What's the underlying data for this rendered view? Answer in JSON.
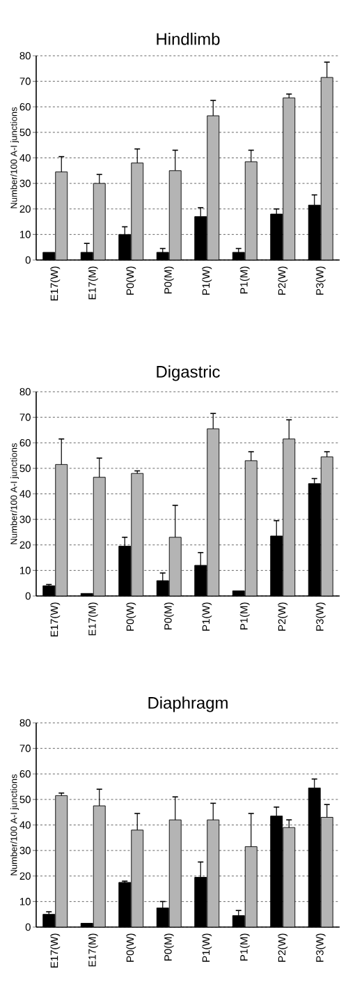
{
  "chart_data": [
    {
      "type": "bar",
      "title": "Hindlimb",
      "ylabel": "Number/100 A-I junctions",
      "categories": [
        "E17(W)",
        "E17(M)",
        "P0(W)",
        "P0(M)",
        "P1(W)",
        "P1(M)",
        "P2(W)",
        "P3(W)"
      ],
      "ylim": [
        0,
        80
      ],
      "yticks": [
        0,
        10,
        20,
        30,
        40,
        50,
        60,
        70,
        80
      ],
      "grid": "y",
      "series": [
        {
          "color": "#000000",
          "values": [
            3,
            3,
            10,
            3,
            17,
            3,
            18,
            21.5
          ],
          "errors": [
            null,
            [
              3,
              6.5
            ],
            [
              10,
              13
            ],
            [
              3,
              4.5
            ],
            [
              17,
              20.5
            ],
            [
              3,
              4.5
            ],
            [
              18,
              20
            ],
            [
              21.5,
              25.5
            ]
          ]
        },
        {
          "color": "#b4b4b4",
          "values": [
            34.5,
            30,
            38,
            35,
            56.5,
            38.5,
            63.5,
            71.5
          ],
          "errors": [
            [
              34.5,
              40.5
            ],
            [
              30,
              33.5
            ],
            [
              38,
              43.5
            ],
            [
              35,
              43
            ],
            [
              56.5,
              62.5
            ],
            [
              38.5,
              43
            ],
            [
              63.5,
              65
            ],
            [
              71.5,
              77.5
            ]
          ]
        }
      ]
    },
    {
      "type": "bar",
      "title": "Digastric",
      "ylabel": "Number/100 A-I junctions",
      "categories": [
        "E17(W)",
        "E17(M)",
        "P0(W)",
        "P0(M)",
        "P1(W)",
        "P1(M)",
        "P2(W)",
        "P3(W)"
      ],
      "ylim": [
        0,
        80
      ],
      "yticks": [
        0,
        10,
        20,
        30,
        40,
        50,
        60,
        70,
        80
      ],
      "grid": "y",
      "series": [
        {
          "color": "#000000",
          "values": [
            4,
            1,
            19.5,
            6,
            12,
            2,
            23.5,
            44
          ],
          "errors": [
            [
              4,
              4.5
            ],
            null,
            [
              19.5,
              23
            ],
            [
              6,
              9
            ],
            [
              12,
              17
            ],
            null,
            [
              23.5,
              29.5
            ],
            [
              44,
              46
            ]
          ]
        },
        {
          "color": "#b4b4b4",
          "values": [
            51.5,
            46.5,
            48,
            23,
            65.5,
            53,
            61.5,
            54.5
          ],
          "errors": [
            [
              51.5,
              61.5
            ],
            [
              46.5,
              54
            ],
            [
              48,
              49
            ],
            [
              23,
              35.5
            ],
            [
              65.5,
              71.5
            ],
            [
              53,
              56.5
            ],
            [
              61.5,
              69
            ],
            [
              54.5,
              56.5
            ]
          ]
        }
      ]
    },
    {
      "type": "bar",
      "title": "Diaphragm",
      "ylabel": "Number/100 A-I junctions",
      "categories": [
        "E17(W)",
        "E17(M)",
        "P0(W)",
        "P0(M)",
        "P1(W)",
        "P1(M)",
        "P2(W)",
        "P3(W)"
      ],
      "ylim": [
        0,
        80
      ],
      "yticks": [
        0,
        10,
        20,
        30,
        40,
        50,
        60,
        70,
        80
      ],
      "grid": "y",
      "series": [
        {
          "color": "#000000",
          "values": [
            5,
            1.5,
            17.5,
            7.5,
            19.5,
            4.5,
            43.5,
            54.5
          ],
          "errors": [
            [
              5,
              6
            ],
            null,
            [
              17.5,
              18
            ],
            [
              7.5,
              10
            ],
            [
              19.5,
              25.5
            ],
            [
              4.5,
              6.5
            ],
            [
              43.5,
              47
            ],
            [
              54.5,
              58
            ]
          ]
        },
        {
          "color": "#b4b4b4",
          "values": [
            51.5,
            47.5,
            38,
            42,
            42,
            31.5,
            39,
            43
          ],
          "errors": [
            [
              51.5,
              52.5
            ],
            [
              47.5,
              54
            ],
            [
              38,
              44.5
            ],
            [
              42,
              51
            ],
            [
              42,
              48.5
            ],
            [
              31.5,
              44.5
            ],
            [
              39,
              42
            ],
            [
              43,
              48
            ]
          ]
        }
      ]
    }
  ]
}
